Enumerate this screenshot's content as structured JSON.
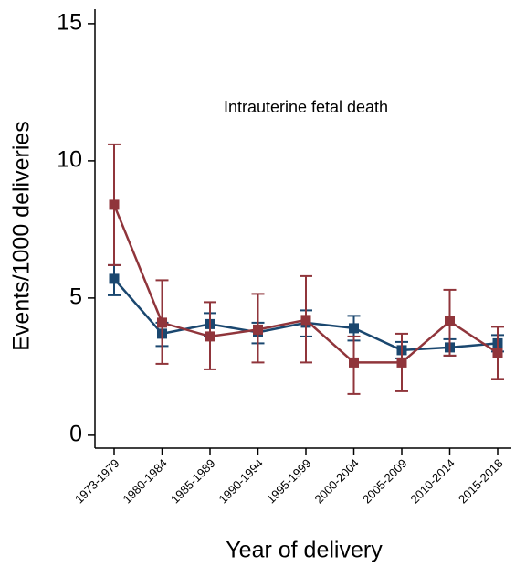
{
  "chart_data": {
    "type": "line",
    "annotation": "Intrauterine fetal death",
    "x_label": "Year of delivery",
    "y_label": "Events/1000 deliveries",
    "categories": [
      "1973-1979",
      "1980-1984",
      "1985-1989",
      "1990-1994",
      "1995-1999",
      "2000-2004",
      "2005-2009",
      "2010-2014",
      "2015-2018"
    ],
    "series": [
      {
        "color": "#1a476f",
        "values": [
          5.7,
          3.7,
          4.05,
          3.75,
          4.1,
          3.9,
          3.1,
          3.2,
          3.35
        ],
        "lower": [
          5.1,
          3.25,
          3.6,
          3.35,
          3.6,
          3.45,
          2.8,
          2.9,
          3.05
        ],
        "upper": [
          6.2,
          4.1,
          4.45,
          4.1,
          4.55,
          4.35,
          3.4,
          3.5,
          3.65
        ]
      },
      {
        "color": "#90353b",
        "values": [
          8.4,
          4.1,
          3.6,
          3.85,
          4.2,
          2.65,
          2.65,
          4.15,
          3.0
        ],
        "lower": [
          6.2,
          2.6,
          2.4,
          2.65,
          2.65,
          1.5,
          1.6,
          2.9,
          2.05
        ],
        "upper": [
          10.6,
          5.65,
          4.85,
          5.15,
          5.8,
          3.6,
          3.7,
          5.3,
          3.95
        ]
      }
    ],
    "ylim": [
      -0.47,
      15.53
    ],
    "yticks": [
      0,
      5,
      10,
      15
    ]
  }
}
